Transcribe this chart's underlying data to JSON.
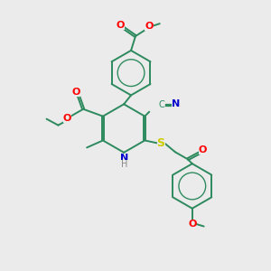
{
  "background_color": "#ebebeb",
  "bond_color": "#2d8a5e",
  "bond_lw": 1.4,
  "atom_colors": {
    "O": "#ff0000",
    "N": "#0000cd",
    "S": "#cccc00",
    "H": "#888888",
    "C": "#2d8a5e"
  },
  "figsize": [
    3.0,
    3.0
  ],
  "dpi": 100
}
